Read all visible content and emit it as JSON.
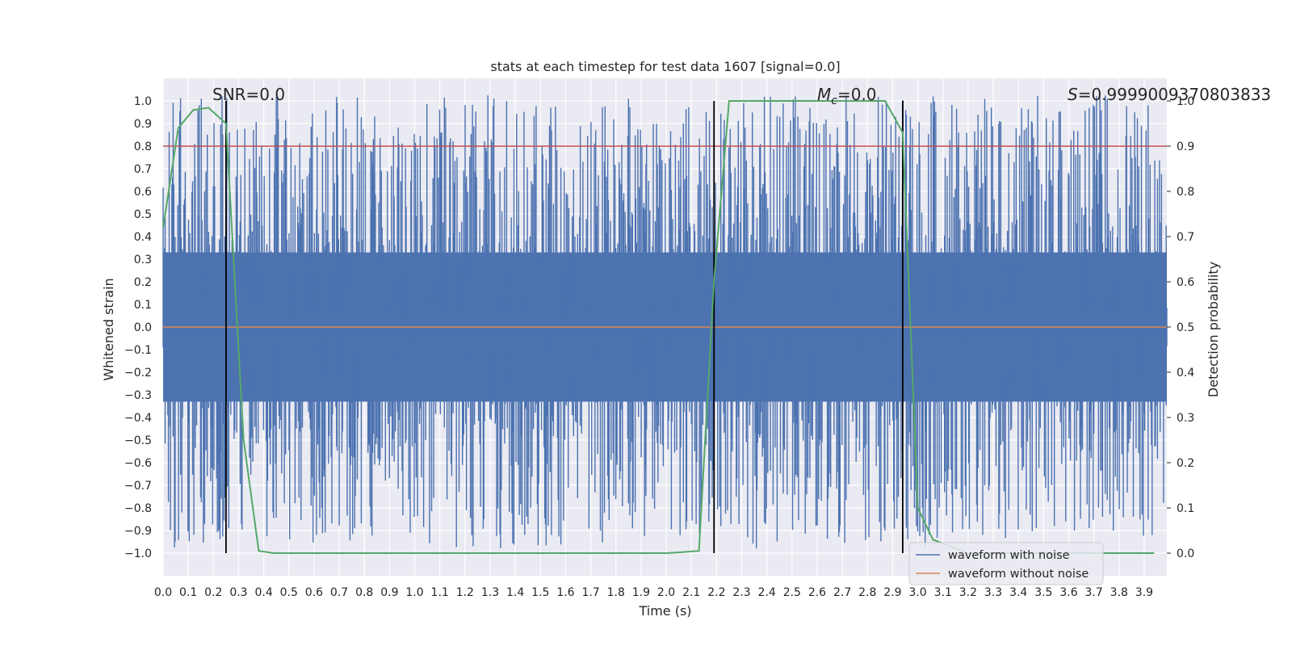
{
  "chart_data": {
    "type": "line",
    "title": "stats at each timestep for test data 1607 [signal=0.0]",
    "xlabel": "Time (s)",
    "ylabel": "Whitened strain",
    "y2label": "Detection probability",
    "xlim": [
      0.0,
      3.99
    ],
    "ylim": [
      -1.1,
      1.1
    ],
    "y2lim": [
      -0.05,
      1.05
    ],
    "xticks": [
      0.0,
      0.1,
      0.2,
      0.3,
      0.4,
      0.5,
      0.6,
      0.7,
      0.8,
      0.9,
      1.0,
      1.1,
      1.2,
      1.3,
      1.4,
      1.5,
      1.6,
      1.7,
      1.8,
      1.9,
      2.0,
      2.1,
      2.2,
      2.3,
      2.4,
      2.5,
      2.6,
      2.7,
      2.8,
      2.9,
      3.0,
      3.1,
      3.2,
      3.3,
      3.4,
      3.5,
      3.6,
      3.7,
      3.8,
      3.9
    ],
    "yticks": [
      -1.0,
      -0.9,
      -0.8,
      -0.7,
      -0.6,
      -0.5,
      -0.4,
      -0.3,
      -0.2,
      -0.1,
      0.0,
      0.1,
      0.2,
      0.3,
      0.4,
      0.5,
      0.6,
      0.7,
      0.8,
      0.9,
      1.0
    ],
    "y2ticks": [
      0.0,
      0.1,
      0.2,
      0.3,
      0.4,
      0.5,
      0.6,
      0.7,
      0.8,
      0.9,
      1.0
    ],
    "annotations": {
      "snr": "SNR=0.0",
      "mc": "=0.0",
      "mc_symbol": "M",
      "mc_sub": "c",
      "s_value": "=0.9999009370803833",
      "s_symbol": "S"
    },
    "series": [
      {
        "name": "waveform with noise",
        "color": "#4c72b0",
        "axis": "left",
        "kind": "noise",
        "amplitude_range": [
          -0.93,
          0.98
        ]
      },
      {
        "name": "waveform without noise",
        "color": "#dd8452",
        "axis": "left",
        "values_y": 0.0
      },
      {
        "name": "detection probability",
        "color": "#55a868",
        "axis": "right",
        "x": [
          0.0,
          0.06,
          0.12,
          0.18,
          0.25,
          0.32,
          0.38,
          0.44,
          0.5,
          1.0,
          1.5,
          2.0,
          2.06,
          2.13,
          2.19,
          2.25,
          2.5,
          2.75,
          2.87,
          2.94,
          3.0,
          3.06,
          3.2,
          3.5,
          3.94
        ],
        "y": [
          0.72,
          0.94,
          0.98,
          0.985,
          0.95,
          0.25,
          0.005,
          0.0,
          0.0,
          0.0,
          0.0,
          0.0,
          0.002,
          0.005,
          0.6,
          1.0,
          1.0,
          1.0,
          1.0,
          0.93,
          0.1,
          0.03,
          0.0,
          0.0,
          0.0
        ]
      }
    ],
    "threshold": {
      "value": 0.9,
      "axis": "right",
      "color": "#c44e52"
    },
    "vertical_lines": [
      0.25,
      2.19,
      2.94
    ],
    "legend": [
      "waveform with noise",
      "waveform without noise"
    ],
    "legend_position": "lower-right",
    "grid": true
  }
}
